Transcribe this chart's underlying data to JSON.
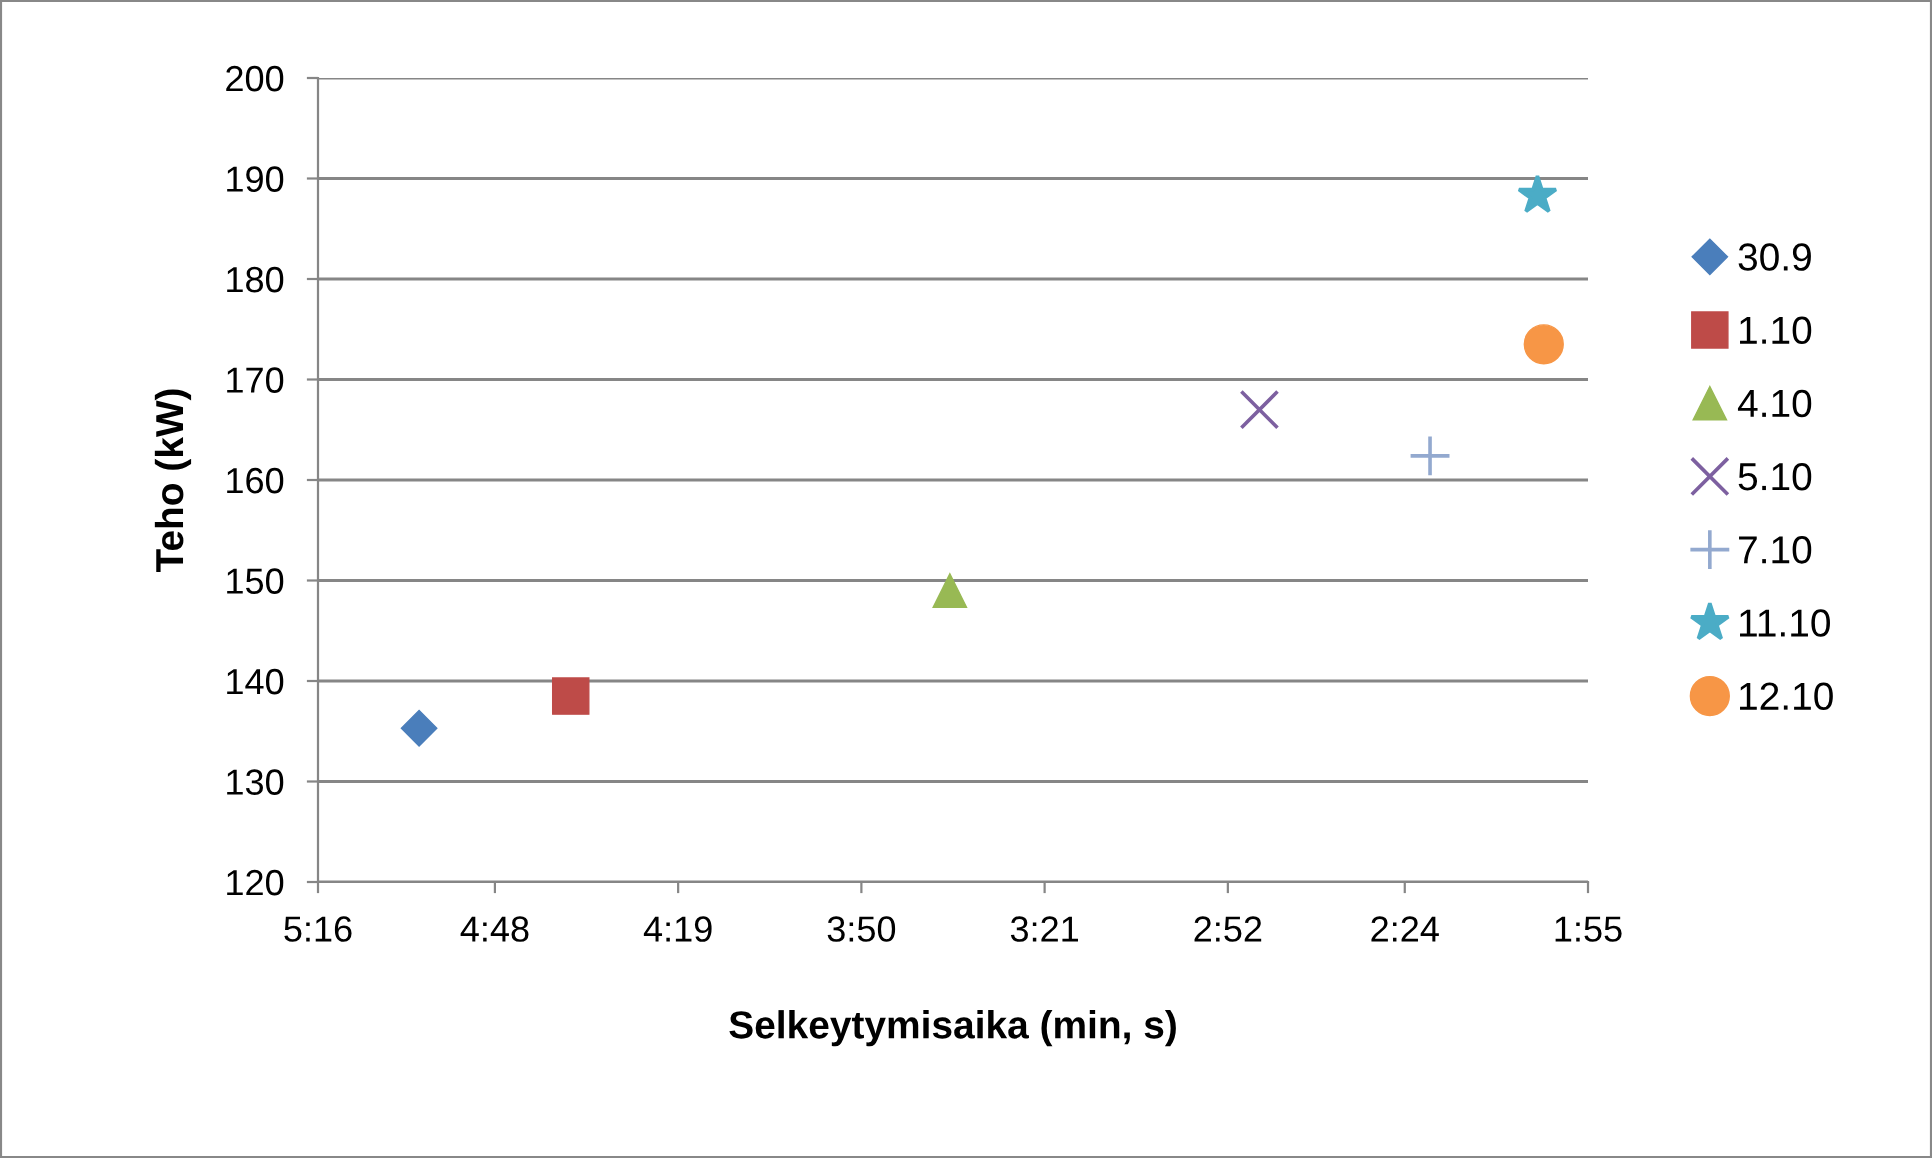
{
  "chart_data": {
    "type": "scatter",
    "xlabel": "Selkeytymisaika (min, s)",
    "ylabel": "Teho (kW)",
    "xlim": [
      316,
      115
    ],
    "xticks": [
      {
        "value": 316,
        "label": "5:16"
      },
      {
        "value": 288,
        "label": "4:48"
      },
      {
        "value": 259,
        "label": "4:19"
      },
      {
        "value": 230,
        "label": "3:50"
      },
      {
        "value": 201,
        "label": "3:21"
      },
      {
        "value": 172,
        "label": "2:52"
      },
      {
        "value": 144,
        "label": "2:24"
      },
      {
        "value": 115,
        "label": "1:55"
      }
    ],
    "ylim": [
      120,
      200
    ],
    "yticks": [
      120,
      130,
      140,
      150,
      160,
      170,
      180,
      190,
      200
    ],
    "grid": "y",
    "legend": "right",
    "series": [
      {
        "name": "30.9",
        "color": "#4a7ebb",
        "marker": "diamond",
        "x": [
          300
        ],
        "values": [
          135.3
        ]
      },
      {
        "name": "1.10",
        "color": "#be4b48",
        "marker": "square",
        "x": [
          276
        ],
        "values": [
          138.5
        ]
      },
      {
        "name": "4.10",
        "color": "#98b954",
        "marker": "triangle",
        "x": [
          216
        ],
        "values": [
          149
        ]
      },
      {
        "name": "5.10",
        "color": "#7d60a0",
        "marker": "cross",
        "x": [
          167
        ],
        "values": [
          167
        ]
      },
      {
        "name": "7.10",
        "color": "#93a9cf",
        "marker": "plus",
        "x": [
          140
        ],
        "values": [
          162.4
        ]
      },
      {
        "name": "11.10",
        "color": "#4bacc6",
        "marker": "star",
        "x": [
          123
        ],
        "values": [
          188.3
        ]
      },
      {
        "name": "12.10",
        "color": "#f79646",
        "marker": "circle",
        "x": [
          122
        ],
        "values": [
          173.5
        ]
      }
    ]
  }
}
